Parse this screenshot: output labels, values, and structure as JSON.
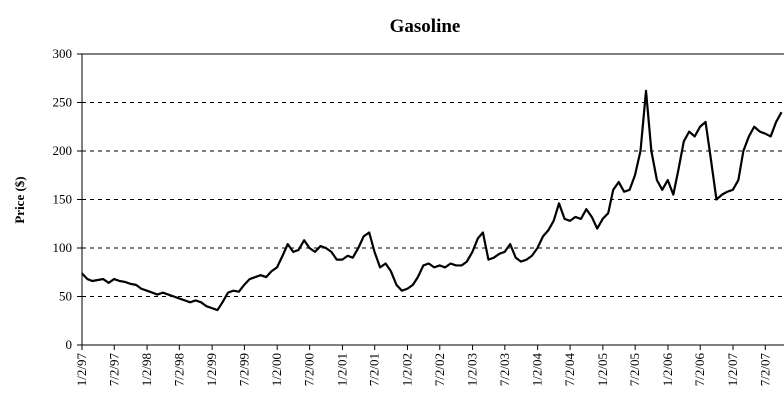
{
  "chart_data": {
    "type": "line",
    "title": "Gasoline",
    "y_label": "Price ($)",
    "x": [
      "1997-01",
      "1997-02",
      "1997-03",
      "1997-04",
      "1997-05",
      "1997-06",
      "1997-07",
      "1997-08",
      "1997-09",
      "1997-10",
      "1997-11",
      "1997-12",
      "1998-01",
      "1998-02",
      "1998-03",
      "1998-04",
      "1998-05",
      "1998-06",
      "1998-07",
      "1998-08",
      "1998-09",
      "1998-10",
      "1998-11",
      "1998-12",
      "1999-01",
      "1999-02",
      "1999-03",
      "1999-04",
      "1999-05",
      "1999-06",
      "1999-07",
      "1999-08",
      "1999-09",
      "1999-10",
      "1999-11",
      "1999-12",
      "2000-01",
      "2000-02",
      "2000-03",
      "2000-04",
      "2000-05",
      "2000-06",
      "2000-07",
      "2000-08",
      "2000-09",
      "2000-10",
      "2000-11",
      "2000-12",
      "2001-01",
      "2001-02",
      "2001-03",
      "2001-04",
      "2001-05",
      "2001-06",
      "2001-07",
      "2001-08",
      "2001-09",
      "2001-10",
      "2001-11",
      "2001-12",
      "2002-01",
      "2002-02",
      "2002-03",
      "2002-04",
      "2002-05",
      "2002-06",
      "2002-07",
      "2002-08",
      "2002-09",
      "2002-10",
      "2002-11",
      "2002-12",
      "2003-01",
      "2003-02",
      "2003-03",
      "2003-04",
      "2003-05",
      "2003-06",
      "2003-07",
      "2003-08",
      "2003-09",
      "2003-10",
      "2003-11",
      "2003-12",
      "2004-01",
      "2004-02",
      "2004-03",
      "2004-04",
      "2004-05",
      "2004-06",
      "2004-07",
      "2004-08",
      "2004-09",
      "2004-10",
      "2004-11",
      "2004-12",
      "2005-01",
      "2005-02",
      "2005-03",
      "2005-04",
      "2005-05",
      "2005-06",
      "2005-07",
      "2005-08",
      "2005-09",
      "2005-10",
      "2005-11",
      "2005-12",
      "2006-01",
      "2006-02",
      "2006-03",
      "2006-04",
      "2006-05",
      "2006-06",
      "2006-07",
      "2006-08",
      "2006-09",
      "2006-10",
      "2006-11",
      "2006-12",
      "2007-01",
      "2007-02",
      "2007-03",
      "2007-04",
      "2007-05",
      "2007-06",
      "2007-07",
      "2007-08",
      "2007-09",
      "2007-10"
    ],
    "values": [
      74,
      68,
      66,
      67,
      68,
      64,
      68,
      66,
      65,
      63,
      62,
      58,
      56,
      54,
      52,
      54,
      52,
      50,
      48,
      46,
      44,
      46,
      44,
      40,
      38,
      36,
      44,
      54,
      56,
      55,
      62,
      68,
      70,
      72,
      70,
      76,
      80,
      92,
      104,
      96,
      98,
      108,
      100,
      96,
      102,
      100,
      96,
      88,
      88,
      92,
      90,
      100,
      112,
      116,
      96,
      80,
      84,
      76,
      62,
      56,
      58,
      62,
      70,
      82,
      84,
      80,
      82,
      80,
      84,
      82,
      82,
      86,
      96,
      110,
      116,
      88,
      90,
      94,
      96,
      104,
      90,
      86,
      88,
      92,
      100,
      112,
      118,
      128,
      146,
      130,
      128,
      132,
      130,
      140,
      132,
      120,
      130,
      136,
      160,
      168,
      158,
      160,
      175,
      200,
      262,
      200,
      170,
      160,
      170,
      155,
      180,
      210,
      220,
      215,
      225,
      230,
      190,
      150,
      155,
      158,
      160,
      170,
      200,
      215,
      225,
      220,
      218,
      215,
      230,
      240
    ],
    "color": "#000000",
    "xlim": [
      "1997-01-02",
      "2007-10-15"
    ],
    "xticks": [
      {
        "value": "1997-01-02",
        "label": "1/2/97"
      },
      {
        "value": "1997-07-02",
        "label": "7/2/97"
      },
      {
        "value": "1998-01-02",
        "label": "1/2/98"
      },
      {
        "value": "1998-07-02",
        "label": "7/2/98"
      },
      {
        "value": "1999-01-02",
        "label": "1/2/99"
      },
      {
        "value": "1999-07-02",
        "label": "7/2/99"
      },
      {
        "value": "2000-01-02",
        "label": "1/2/00"
      },
      {
        "value": "2000-07-02",
        "label": "7/2/00"
      },
      {
        "value": "2001-01-02",
        "label": "1/2/01"
      },
      {
        "value": "2001-07-02",
        "label": "7/2/01"
      },
      {
        "value": "2002-01-02",
        "label": "1/2/02"
      },
      {
        "value": "2002-07-02",
        "label": "7/2/02"
      },
      {
        "value": "2003-01-02",
        "label": "1/2/03"
      },
      {
        "value": "2003-07-02",
        "label": "7/2/03"
      },
      {
        "value": "2004-01-02",
        "label": "1/2/04"
      },
      {
        "value": "2004-07-02",
        "label": "7/2/04"
      },
      {
        "value": "2005-01-02",
        "label": "1/2/05"
      },
      {
        "value": "2005-07-02",
        "label": "7/2/05"
      },
      {
        "value": "2006-01-02",
        "label": "1/2/06"
      },
      {
        "value": "2006-07-02",
        "label": "7/2/06"
      },
      {
        "value": "2007-01-02",
        "label": "1/2/07"
      },
      {
        "value": "2007-07-02",
        "label": "7/2/07"
      }
    ],
    "ylim": [
      0,
      300
    ],
    "yticks": [
      0,
      50,
      100,
      150,
      200,
      250,
      300
    ],
    "grid": true
  }
}
